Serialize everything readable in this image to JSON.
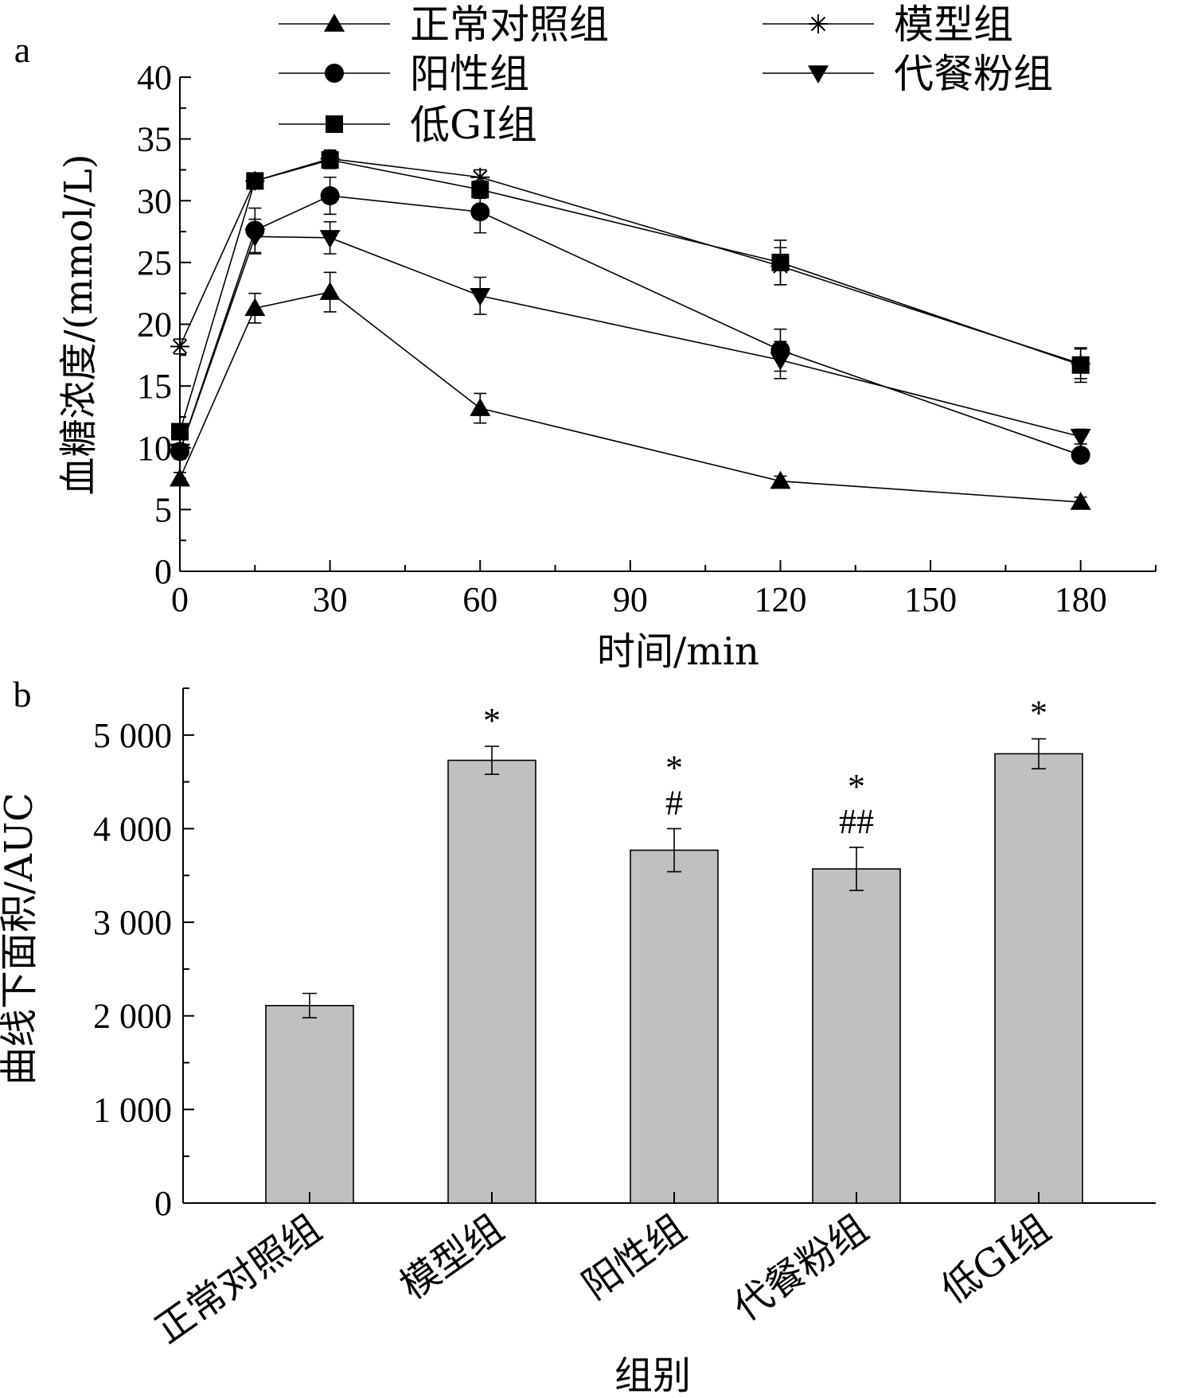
{
  "chart_data": [
    {
      "panel": "a",
      "type": "line",
      "xlabel": "时间/min",
      "ylabel": "血糖浓度/(mmol/L)",
      "xlim": [
        0,
        195
      ],
      "ylim": [
        0,
        40
      ],
      "xticks": [
        0,
        30,
        60,
        90,
        120,
        150,
        180
      ],
      "yticks": [
        0,
        5,
        10,
        15,
        20,
        25,
        30,
        35,
        40
      ],
      "grid": false,
      "legend_position": "top",
      "x": [
        0,
        15,
        30,
        60,
        120,
        180
      ],
      "series": [
        {
          "name": "正常对照组",
          "marker": "triangle-up",
          "values": [
            7.5,
            21.3,
            22.6,
            13.2,
            7.3,
            5.6
          ],
          "errors": [
            0.5,
            1.2,
            1.6,
            1.2,
            0.4,
            0.4
          ]
        },
        {
          "name": "模型组",
          "marker": "asterisk",
          "values": [
            18.2,
            31.6,
            33.4,
            31.9,
            24.7,
            16.8
          ],
          "errors": [
            0.6,
            0.6,
            0.7,
            0.6,
            1.5,
            1.2
          ]
        },
        {
          "name": "阳性组",
          "marker": "circle",
          "values": [
            9.7,
            27.6,
            30.4,
            29.1,
            17.9,
            9.4
          ],
          "errors": [
            0.6,
            1.8,
            1.5,
            1.7,
            1.7,
            0.5
          ]
        },
        {
          "name": "代餐粉组",
          "marker": "triangle-down",
          "values": [
            9.7,
            27.1,
            27.0,
            22.3,
            17.1,
            10.9
          ],
          "errors": [
            0.6,
            1.4,
            1.3,
            1.5,
            1.5,
            0.6
          ]
        },
        {
          "name": "低GI组",
          "marker": "square",
          "values": [
            11.3,
            31.6,
            33.3,
            30.9,
            25.0,
            16.7
          ],
          "errors": [
            0.5,
            0.6,
            0.7,
            0.7,
            1.8,
            1.4
          ]
        }
      ]
    },
    {
      "panel": "b",
      "type": "bar",
      "xlabel": "组别",
      "ylabel": "曲线下面积/AUC",
      "ylim": [
        0,
        5500
      ],
      "yticks": [
        0,
        1000,
        2000,
        3000,
        4000,
        5000
      ],
      "ytick_labels": [
        "0",
        "1 000",
        "2 000",
        "3 000",
        "4 000",
        "5 000"
      ],
      "grid": false,
      "bar_color": "#c0c0c0",
      "categories": [
        "正常对照组",
        "模型组",
        "阳性组",
        "代餐粉组",
        "低GI组"
      ],
      "values": [
        2110,
        4730,
        3770,
        3570,
        4800
      ],
      "errors": [
        130,
        150,
        230,
        230,
        160
      ],
      "annotations": [
        "",
        "*",
        "*\n#",
        "*\n##",
        "*"
      ]
    }
  ]
}
